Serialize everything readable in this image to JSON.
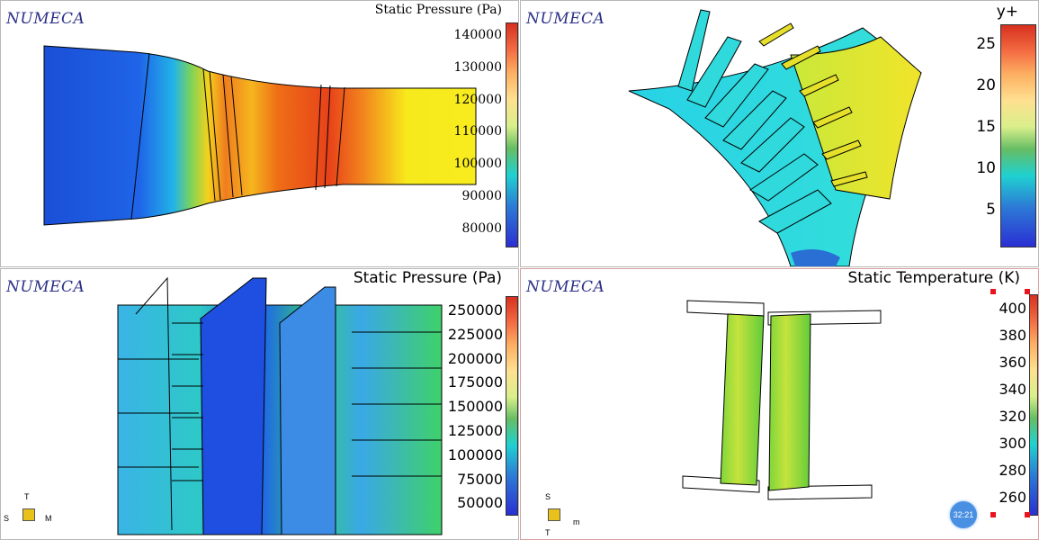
{
  "brand": "NUMECA",
  "panels": {
    "p1": {
      "title": "Static Pressure (Pa)",
      "ticks": [
        "140000",
        "130000",
        "120000",
        "110000",
        "100000",
        "90000",
        "80000"
      ]
    },
    "p2": {
      "title": "y+",
      "ticks": [
        "25",
        "20",
        "15",
        "10",
        "5"
      ]
    },
    "p3": {
      "title": "Static Pressure (Pa)",
      "ticks": [
        "250000",
        "225000",
        "200000",
        "175000",
        "150000",
        "125000",
        "100000",
        "75000",
        "50000"
      ],
      "axes": {
        "up": "T",
        "left": "S",
        "right": "M"
      }
    },
    "p4": {
      "title": "Static Temperature (K)",
      "ticks": [
        "400",
        "380",
        "360",
        "340",
        "320",
        "300",
        "280",
        "260"
      ],
      "axes": {
        "up": "S",
        "down": "T",
        "right": "m"
      },
      "timer": "32:21"
    }
  },
  "colors": {
    "logo": "#2b2f86",
    "frame": "#b8b8b8",
    "timer": "#4a90e2",
    "marker": "#e8141e"
  }
}
